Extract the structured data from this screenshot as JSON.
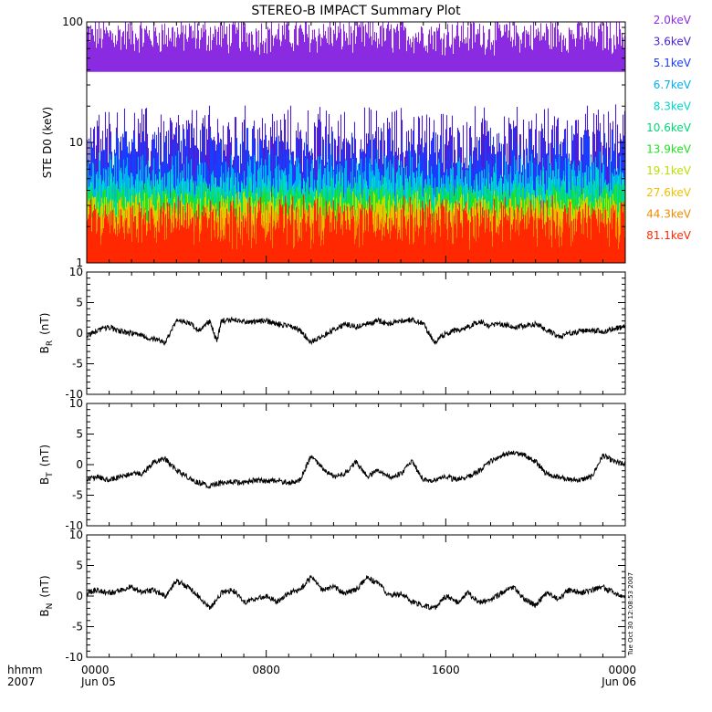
{
  "title": "STEREO-B IMPACT Summary Plot",
  "timestamp": "Tue Oct 30 12:08:53 2007",
  "time_axis_label": {
    "line1": "hhmm",
    "line2": "2007"
  },
  "time_ticks": [
    {
      "hour": 0,
      "time": "0000",
      "date": "Jun 05"
    },
    {
      "hour": 8,
      "time": "0800",
      "date": ""
    },
    {
      "hour": 16,
      "time": "1600",
      "date": ""
    },
    {
      "hour": 24,
      "time": "0000",
      "date": "Jun 06"
    }
  ],
  "colors": {
    "2.0keV": "#8a2be2",
    "3.6keV": "#4b1fd6",
    "5.1keV": "#1a3cff",
    "6.7keV": "#00b0f0",
    "8.3keV": "#00d8c8",
    "10.6keV": "#00d878",
    "13.9keV": "#22e022",
    "19.1keV": "#b8e000",
    "27.6keV": "#f0c000",
    "44.3keV": "#f08c00",
    "81.1keV": "#ff2800"
  },
  "chart_data": [
    {
      "type": "line",
      "panel": "ste",
      "title": "STEREO-B IMPACT Summary Plot",
      "ylabel": "STE D0 (keV)",
      "yscale": "log",
      "ylim": [
        1,
        100
      ],
      "xlim": [
        0,
        24
      ],
      "yticks": [
        "1",
        "10",
        "100"
      ],
      "series": [
        {
          "name": "2.0keV",
          "base": 70,
          "spread": 0.22
        },
        {
          "name": "3.6keV",
          "base": 8,
          "spread": 0.45
        },
        {
          "name": "5.1keV",
          "base": 6,
          "spread": 0.4
        },
        {
          "name": "6.7keV",
          "base": 4.5,
          "spread": 0.3
        },
        {
          "name": "8.3keV",
          "base": 3.6,
          "spread": 0.25
        },
        {
          "name": "10.6keV",
          "base": 3.2,
          "spread": 0.2
        },
        {
          "name": "13.9keV",
          "base": 2.9,
          "spread": 0.2
        },
        {
          "name": "19.1keV",
          "base": 2.6,
          "spread": 0.2
        },
        {
          "name": "27.6keV",
          "base": 2.3,
          "spread": 0.2
        },
        {
          "name": "44.3keV",
          "base": 2.0,
          "spread": 0.2
        },
        {
          "name": "81.1keV",
          "base": 1.9,
          "spread": 0.3
        }
      ]
    },
    {
      "type": "line",
      "panel": "br",
      "ylabel": "B_R (nT)",
      "ylabel_main": "B",
      "ylabel_sub": "R",
      "ylabel_unit": "(nT)",
      "ylim": [
        -10,
        10
      ],
      "xlim": [
        0,
        24
      ],
      "yticks": [
        "-10",
        "-5",
        "0",
        "5",
        "10"
      ],
      "points": [
        [
          0,
          -0.5
        ],
        [
          0.5,
          0.5
        ],
        [
          1,
          1.0
        ],
        [
          1.5,
          0.3
        ],
        [
          2,
          0.0
        ],
        [
          2.5,
          -0.5
        ],
        [
          3,
          -1.0
        ],
        [
          3.5,
          -1.5
        ],
        [
          4,
          2.0
        ],
        [
          4.5,
          1.8
        ],
        [
          5,
          0.5
        ],
        [
          5.5,
          2.0
        ],
        [
          5.8,
          -1.5
        ],
        [
          6,
          2.0
        ],
        [
          6.5,
          2.2
        ],
        [
          7,
          2.0
        ],
        [
          7.5,
          1.8
        ],
        [
          8,
          2.0
        ],
        [
          8.5,
          1.5
        ],
        [
          9,
          1.2
        ],
        [
          9.5,
          0.5
        ],
        [
          10,
          -1.5
        ],
        [
          10.5,
          -0.5
        ],
        [
          11,
          0.5
        ],
        [
          11.5,
          1.5
        ],
        [
          12,
          1.0
        ],
        [
          12.5,
          1.5
        ],
        [
          13,
          2.0
        ],
        [
          13.5,
          1.5
        ],
        [
          14,
          2.0
        ],
        [
          14.5,
          2.2
        ],
        [
          15,
          1.5
        ],
        [
          15.5,
          -1.5
        ],
        [
          16,
          0.0
        ],
        [
          16.5,
          0.5
        ],
        [
          17,
          1.0
        ],
        [
          17.5,
          2.0
        ],
        [
          18,
          1.2
        ],
        [
          18.5,
          1.5
        ],
        [
          19,
          1.0
        ],
        [
          19.5,
          1.2
        ],
        [
          20,
          1.5
        ],
        [
          20.5,
          0.5
        ],
        [
          21,
          -0.5
        ],
        [
          21.5,
          0.0
        ],
        [
          22,
          0.3
        ],
        [
          22.5,
          0.5
        ],
        [
          23,
          0.3
        ],
        [
          23.5,
          0.8
        ],
        [
          24,
          1.0
        ]
      ]
    },
    {
      "type": "line",
      "panel": "bt",
      "ylabel": "B_T (nT)",
      "ylabel_main": "B",
      "ylabel_sub": "T",
      "ylabel_unit": "(nT)",
      "ylim": [
        -10,
        10
      ],
      "xlim": [
        0,
        24
      ],
      "yticks": [
        "-10",
        "-5",
        "0",
        "5",
        "10"
      ],
      "points": [
        [
          0,
          -2.5
        ],
        [
          0.5,
          -2.0
        ],
        [
          1,
          -2.5
        ],
        [
          1.5,
          -2.0
        ],
        [
          2,
          -1.5
        ],
        [
          2.5,
          -1.5
        ],
        [
          3,
          0.5
        ],
        [
          3.5,
          1.0
        ],
        [
          4,
          -1.0
        ],
        [
          4.5,
          -2.0
        ],
        [
          5,
          -3.0
        ],
        [
          5.5,
          -3.5
        ],
        [
          6,
          -3.0
        ],
        [
          6.5,
          -2.8
        ],
        [
          7,
          -3.0
        ],
        [
          7.5,
          -2.5
        ],
        [
          8,
          -2.8
        ],
        [
          8.5,
          -2.5
        ],
        [
          9,
          -3.0
        ],
        [
          9.5,
          -2.5
        ],
        [
          10,
          1.5
        ],
        [
          10.5,
          -0.5
        ],
        [
          11,
          -2.0
        ],
        [
          11.5,
          -1.5
        ],
        [
          12,
          0.5
        ],
        [
          12.5,
          -2.0
        ],
        [
          13,
          -1.0
        ],
        [
          13.5,
          -2.0
        ],
        [
          14,
          -1.5
        ],
        [
          14.5,
          0.5
        ],
        [
          15,
          -2.5
        ],
        [
          15.5,
          -2.5
        ],
        [
          16,
          -2.0
        ],
        [
          16.5,
          -2.5
        ],
        [
          17,
          -2.0
        ],
        [
          17.5,
          -1.0
        ],
        [
          18,
          0.5
        ],
        [
          18.5,
          1.5
        ],
        [
          19,
          2.0
        ],
        [
          19.5,
          1.5
        ],
        [
          20,
          0.5
        ],
        [
          20.5,
          -1.5
        ],
        [
          21,
          -2.0
        ],
        [
          21.5,
          -2.5
        ],
        [
          22,
          -2.5
        ],
        [
          22.5,
          -2.0
        ],
        [
          23,
          1.5
        ],
        [
          23.5,
          0.5
        ],
        [
          24,
          0.0
        ]
      ]
    },
    {
      "type": "line",
      "panel": "bn",
      "ylabel": "B_N (nT)",
      "ylabel_main": "B",
      "ylabel_sub": "N",
      "ylabel_unit": "(nT)",
      "ylim": [
        -10,
        10
      ],
      "xlim": [
        0,
        24
      ],
      "yticks": [
        "-10",
        "-5",
        "0",
        "5",
        "10"
      ],
      "points": [
        [
          0,
          0.5
        ],
        [
          0.5,
          1.0
        ],
        [
          1,
          0.5
        ],
        [
          1.5,
          1.0
        ],
        [
          2,
          1.5
        ],
        [
          2.5,
          0.5
        ],
        [
          3,
          1.0
        ],
        [
          3.5,
          0.0
        ],
        [
          4,
          2.5
        ],
        [
          4.5,
          1.5
        ],
        [
          5,
          0.0
        ],
        [
          5.5,
          -2.0
        ],
        [
          6,
          0.5
        ],
        [
          6.5,
          1.0
        ],
        [
          7,
          -1.0
        ],
        [
          7.5,
          -0.5
        ],
        [
          8,
          0.0
        ],
        [
          8.5,
          -1.0
        ],
        [
          9,
          0.5
        ],
        [
          9.5,
          1.0
        ],
        [
          10,
          3.0
        ],
        [
          10.5,
          1.0
        ],
        [
          11,
          1.5
        ],
        [
          11.5,
          0.5
        ],
        [
          12,
          1.0
        ],
        [
          12.5,
          3.0
        ],
        [
          13,
          2.0
        ],
        [
          13.5,
          0.0
        ],
        [
          14,
          0.5
        ],
        [
          14.5,
          -1.0
        ],
        [
          15,
          -1.5
        ],
        [
          15.5,
          -2.0
        ],
        [
          16,
          0.0
        ],
        [
          16.5,
          -1.0
        ],
        [
          17,
          0.5
        ],
        [
          17.5,
          -1.0
        ],
        [
          18,
          -0.5
        ],
        [
          18.5,
          0.5
        ],
        [
          19,
          1.5
        ],
        [
          19.5,
          -0.5
        ],
        [
          20,
          -1.5
        ],
        [
          20.5,
          0.5
        ],
        [
          21,
          -0.5
        ],
        [
          21.5,
          1.0
        ],
        [
          22,
          0.5
        ],
        [
          22.5,
          1.0
        ],
        [
          23,
          1.5
        ],
        [
          23.5,
          0.5
        ],
        [
          24,
          0.0
        ]
      ]
    }
  ]
}
